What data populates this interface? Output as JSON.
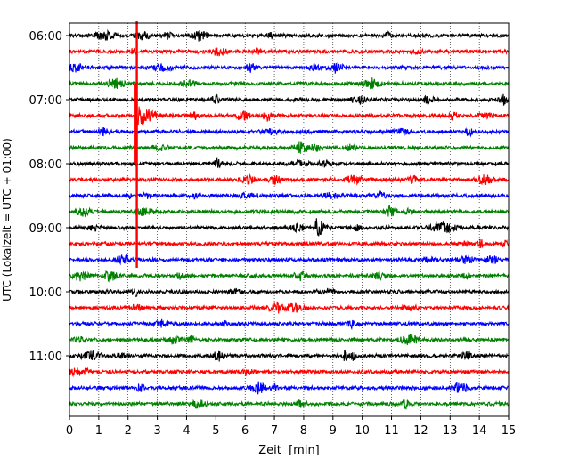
{
  "chart_data": {
    "type": "line",
    "xlabel": "Zeit  [min]",
    "ylabel": "UTC (Lokalzeit = UTC + 01:00)",
    "xlim": [
      0,
      15
    ],
    "x_ticks": [
      "0",
      "1",
      "2",
      "3",
      "4",
      "5",
      "6",
      "7",
      "8",
      "9",
      "10",
      "11",
      "12",
      "13",
      "14",
      "15"
    ],
    "y_ticks": [
      {
        "label": "06:00",
        "hour_offset": 0
      },
      {
        "label": "07:00",
        "hour_offset": 1
      },
      {
        "label": "08:00",
        "hour_offset": 2
      },
      {
        "label": "09:00",
        "hour_offset": 3
      },
      {
        "label": "10:00",
        "hour_offset": 4
      },
      {
        "label": "11:00",
        "hour_offset": 5
      }
    ],
    "trace_interval_min": 15,
    "first_trace": "06:00",
    "trace_count": 24,
    "trace_colors": [
      "#000000",
      "#ff0000",
      "#0000ff",
      "#008000"
    ],
    "grid": "vertical dotted at each minute",
    "events": [
      {
        "trace_index": 5,
        "onset_min": 2.3,
        "type": "large earthquake (clipped spike through traces)",
        "decay_min": 0.9
      },
      {
        "trace_index": 12,
        "onset_min": 8.4,
        "type": "local burst",
        "decay_min": 0.6
      }
    ]
  }
}
